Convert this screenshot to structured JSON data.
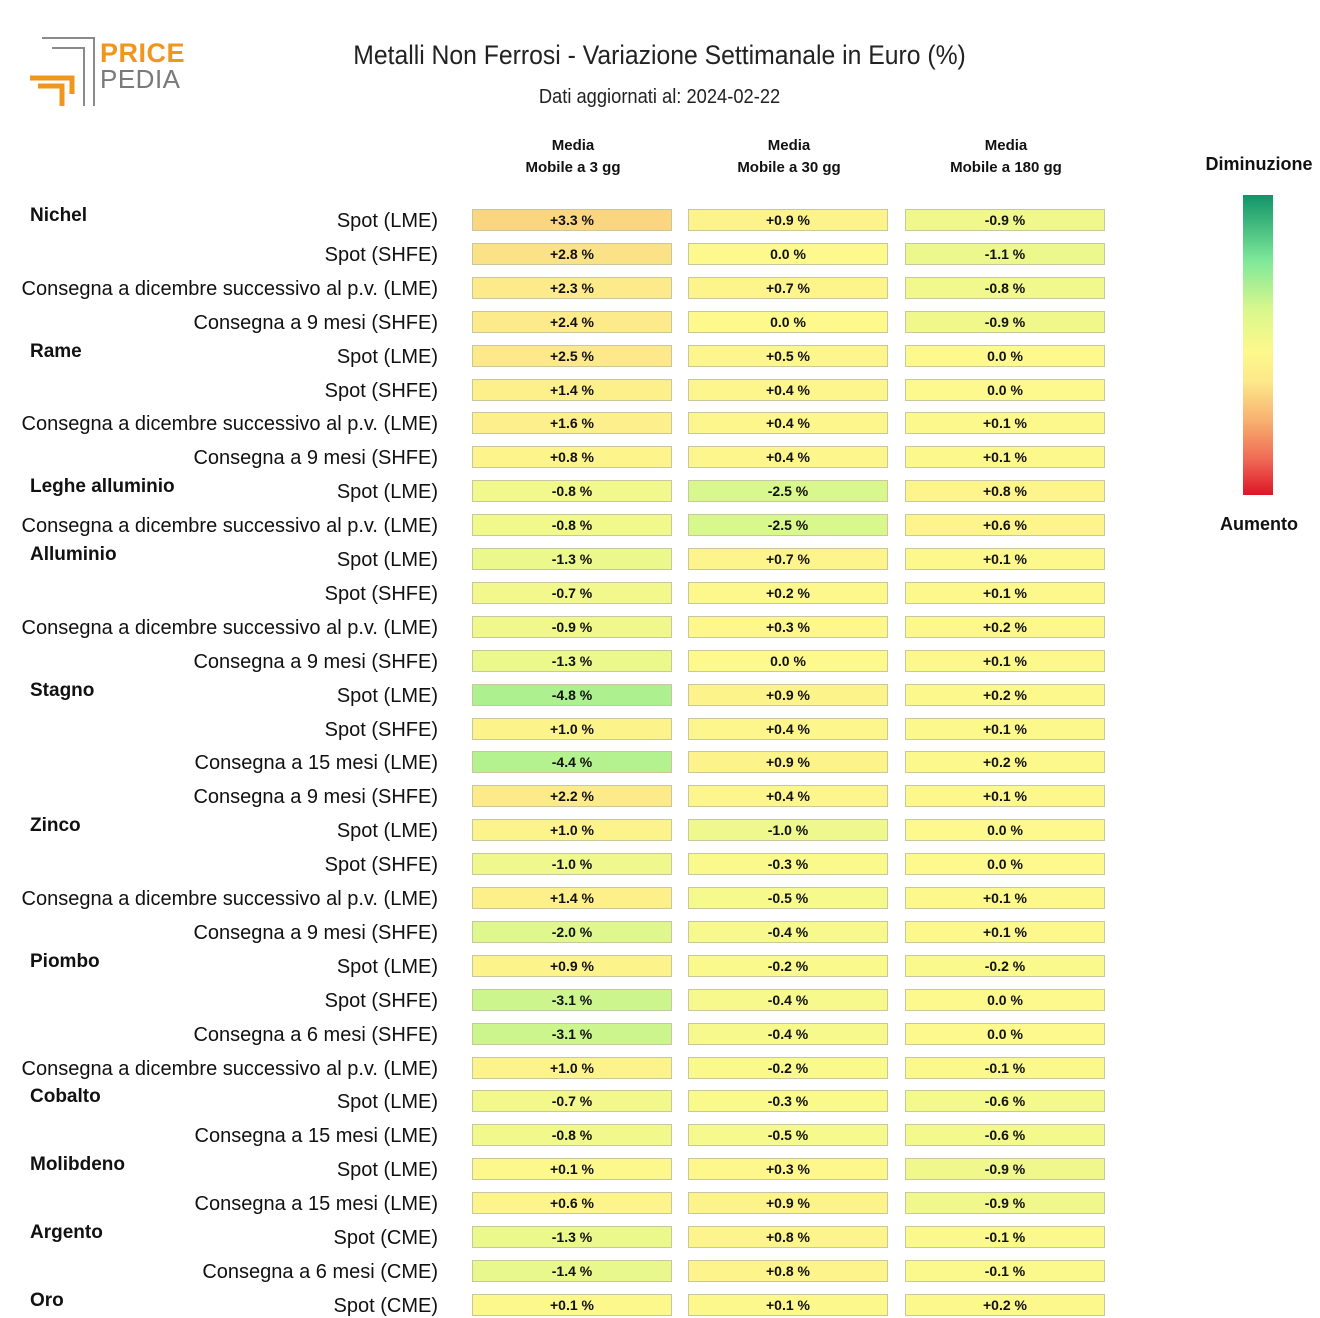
{
  "logo": {
    "line1": "PRICE",
    "line2": "PEDIA",
    "icon": "pricepedia-logo-icon"
  },
  "header": {
    "title": "Metalli Non Ferrosi - Variazione Settimanale in Euro (%)",
    "subtitle": "Dati aggiornati al: 2024-02-22"
  },
  "legend": {
    "top_label": "Diminuzione",
    "bottom_label": "Aumento"
  },
  "colors": {
    "decrease": "#119469",
    "neutral": "#fdf98c",
    "increase": "#dd1528"
  },
  "chart_data": {
    "type": "heatmap",
    "title": "Metalli Non Ferrosi - Variazione Settimanale in Euro (%)",
    "subtitle": "Dati aggiornati al: 2024-02-22",
    "columns": [
      "Media Mobile a 3 gg",
      "Media Mobile a 30 gg",
      "Media Mobile a 180 gg"
    ],
    "color_scale": {
      "top": "Diminuzione",
      "bottom": "Aumento"
    },
    "rows": [
      {
        "group": "Nichel",
        "label": "Spot (LME)",
        "values": [
          3.3,
          0.9,
          -0.9
        ],
        "texts": [
          "+3.3 %",
          "+0.9 %",
          "-0.9 %"
        ]
      },
      {
        "group": "",
        "label": "Spot (SHFE)",
        "values": [
          2.8,
          0.0,
          -1.1
        ],
        "texts": [
          "+2.8 %",
          "0.0 %",
          "-1.1 %"
        ]
      },
      {
        "group": "",
        "label": "Consegna a dicembre successivo al p.v. (LME)",
        "values": [
          2.3,
          0.7,
          -0.8
        ],
        "texts": [
          "+2.3 %",
          "+0.7 %",
          "-0.8 %"
        ]
      },
      {
        "group": "",
        "label": "Consegna a 9 mesi (SHFE)",
        "values": [
          2.4,
          0.0,
          -0.9
        ],
        "texts": [
          "+2.4 %",
          "0.0 %",
          "-0.9 %"
        ]
      },
      {
        "group": "Rame",
        "label": "Spot (LME)",
        "values": [
          2.5,
          0.5,
          0.0
        ],
        "texts": [
          "+2.5 %",
          "+0.5 %",
          "0.0 %"
        ]
      },
      {
        "group": "",
        "label": "Spot (SHFE)",
        "values": [
          1.4,
          0.4,
          0.0
        ],
        "texts": [
          "+1.4 %",
          "+0.4 %",
          "0.0 %"
        ]
      },
      {
        "group": "",
        "label": "Consegna a dicembre successivo al p.v. (LME)",
        "values": [
          1.6,
          0.4,
          0.1
        ],
        "texts": [
          "+1.6 %",
          "+0.4 %",
          "+0.1 %"
        ]
      },
      {
        "group": "",
        "label": "Consegna a 9 mesi (SHFE)",
        "values": [
          0.8,
          0.4,
          0.1
        ],
        "texts": [
          "+0.8 %",
          "+0.4 %",
          "+0.1 %"
        ]
      },
      {
        "group": "Leghe alluminio",
        "label": "Spot (LME)",
        "values": [
          -0.8,
          -2.5,
          0.8
        ],
        "texts": [
          "-0.8 %",
          "-2.5 %",
          "+0.8 %"
        ]
      },
      {
        "group": "",
        "label": "Consegna a dicembre successivo al p.v. (LME)",
        "values": [
          -0.8,
          -2.5,
          0.6
        ],
        "texts": [
          "-0.8 %",
          "-2.5 %",
          "+0.6 %"
        ]
      },
      {
        "group": "Alluminio",
        "label": "Spot (LME)",
        "values": [
          -1.3,
          0.7,
          0.1
        ],
        "texts": [
          "-1.3 %",
          "+0.7 %",
          "+0.1 %"
        ]
      },
      {
        "group": "",
        "label": "Spot (SHFE)",
        "values": [
          -0.7,
          0.2,
          0.1
        ],
        "texts": [
          "-0.7 %",
          "+0.2 %",
          "+0.1 %"
        ]
      },
      {
        "group": "",
        "label": "Consegna a dicembre successivo al p.v. (LME)",
        "values": [
          -0.9,
          0.3,
          0.2
        ],
        "texts": [
          "-0.9 %",
          "+0.3 %",
          "+0.2 %"
        ]
      },
      {
        "group": "",
        "label": "Consegna a 9 mesi (SHFE)",
        "values": [
          -1.3,
          0.0,
          0.1
        ],
        "texts": [
          "-1.3 %",
          "0.0 %",
          "+0.1 %"
        ]
      },
      {
        "group": "Stagno",
        "label": "Spot (LME)",
        "values": [
          -4.8,
          0.9,
          0.2
        ],
        "texts": [
          "-4.8 %",
          "+0.9 %",
          "+0.2 %"
        ]
      },
      {
        "group": "",
        "label": "Spot (SHFE)",
        "values": [
          1.0,
          0.4,
          0.1
        ],
        "texts": [
          "+1.0 %",
          "+0.4 %",
          "+0.1 %"
        ]
      },
      {
        "group": "",
        "label": "Consegna a 15 mesi (LME)",
        "values": [
          -4.4,
          0.9,
          0.2
        ],
        "texts": [
          "-4.4 %",
          "+0.9 %",
          "+0.2 %"
        ]
      },
      {
        "group": "",
        "label": "Consegna a 9 mesi (SHFE)",
        "values": [
          2.2,
          0.4,
          0.1
        ],
        "texts": [
          "+2.2 %",
          "+0.4 %",
          "+0.1 %"
        ]
      },
      {
        "group": "Zinco",
        "label": "Spot (LME)",
        "values": [
          1.0,
          -1.0,
          0.0
        ],
        "texts": [
          "+1.0 %",
          "-1.0 %",
          "0.0 %"
        ]
      },
      {
        "group": "",
        "label": "Spot (SHFE)",
        "values": [
          -1.0,
          -0.3,
          0.0
        ],
        "texts": [
          "-1.0 %",
          "-0.3 %",
          "0.0 %"
        ]
      },
      {
        "group": "",
        "label": "Consegna a dicembre successivo al p.v. (LME)",
        "values": [
          1.4,
          -0.5,
          0.1
        ],
        "texts": [
          "+1.4 %",
          "-0.5 %",
          "+0.1 %"
        ]
      },
      {
        "group": "",
        "label": "Consegna a 9 mesi (SHFE)",
        "values": [
          -2.0,
          -0.4,
          0.1
        ],
        "texts": [
          "-2.0 %",
          "-0.4 %",
          "+0.1 %"
        ]
      },
      {
        "group": "Piombo",
        "label": "Spot (LME)",
        "values": [
          0.9,
          -0.2,
          -0.2
        ],
        "texts": [
          "+0.9 %",
          "-0.2 %",
          "-0.2 %"
        ]
      },
      {
        "group": "",
        "label": "Spot (SHFE)",
        "values": [
          -3.1,
          -0.4,
          0.0
        ],
        "texts": [
          "-3.1 %",
          "-0.4 %",
          "0.0 %"
        ]
      },
      {
        "group": "",
        "label": "Consegna a 6 mesi (SHFE)",
        "values": [
          -3.1,
          -0.4,
          0.0
        ],
        "texts": [
          "-3.1 %",
          "-0.4 %",
          "0.0 %"
        ]
      },
      {
        "group": "",
        "label": "Consegna a dicembre successivo al p.v. (LME)",
        "values": [
          1.0,
          -0.2,
          -0.1
        ],
        "texts": [
          "+1.0 %",
          "-0.2 %",
          "-0.1 %"
        ]
      },
      {
        "group": "Cobalto",
        "label": "Spot (LME)",
        "values": [
          -0.7,
          -0.3,
          -0.6
        ],
        "texts": [
          "-0.7 %",
          "-0.3 %",
          "-0.6 %"
        ]
      },
      {
        "group": "",
        "label": "Consegna a 15 mesi (LME)",
        "values": [
          -0.8,
          -0.5,
          -0.6
        ],
        "texts": [
          "-0.8 %",
          "-0.5 %",
          "-0.6 %"
        ]
      },
      {
        "group": "Molibdeno",
        "label": "Spot (LME)",
        "values": [
          0.1,
          0.3,
          -0.9
        ],
        "texts": [
          "+0.1 %",
          "+0.3 %",
          "-0.9 %"
        ]
      },
      {
        "group": "",
        "label": "Consegna a 15 mesi (LME)",
        "values": [
          0.6,
          0.9,
          -0.9
        ],
        "texts": [
          "+0.6 %",
          "+0.9 %",
          "-0.9 %"
        ]
      },
      {
        "group": "Argento",
        "label": "Spot (CME)",
        "values": [
          -1.3,
          0.8,
          -0.1
        ],
        "texts": [
          "-1.3 %",
          "+0.8 %",
          "-0.1 %"
        ]
      },
      {
        "group": "",
        "label": "Consegna a 6 mesi (CME)",
        "values": [
          -1.4,
          0.8,
          -0.1
        ],
        "texts": [
          "-1.4 %",
          "+0.8 %",
          "-0.1 %"
        ]
      },
      {
        "group": "Oro",
        "label": "Spot (CME)",
        "values": [
          0.1,
          0.1,
          0.2
        ],
        "texts": [
          "+0.1 %",
          "+0.1 %",
          "+0.2 %"
        ]
      }
    ]
  }
}
